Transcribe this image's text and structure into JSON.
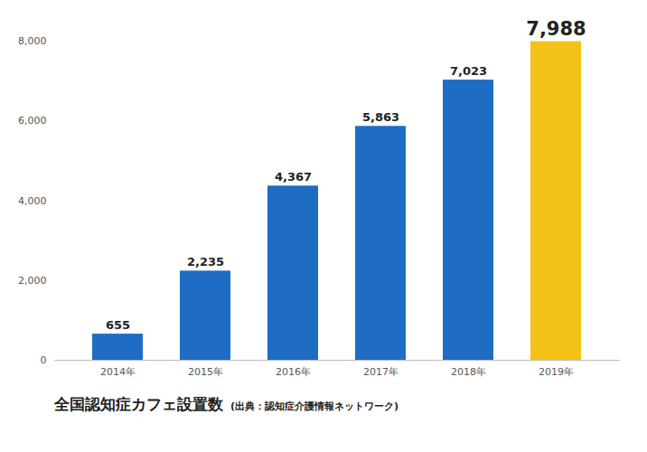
{
  "chart_data": {
    "type": "bar",
    "title": "全国認知症カフェ設置数",
    "subtitle": "(出典：認知症介護情報ネットワーク)",
    "categories": [
      "2014年",
      "2015年",
      "2016年",
      "2017年",
      "2018年",
      "2019年"
    ],
    "values": [
      655,
      2235,
      4367,
      5863,
      7023,
      7988
    ],
    "value_labels": [
      "655",
      "2,235",
      "4,367",
      "5,863",
      "7,023",
      "7,988"
    ],
    "colors": [
      "#1f6cc4",
      "#1f6cc4",
      "#1f6cc4",
      "#1f6cc4",
      "#1f6cc4",
      "#f2c218"
    ],
    "ylim": [
      0,
      8000
    ],
    "yticks": [
      0,
      {
        "value": 2000,
        "label": "2,000"
      },
      {
        "value": 4000,
        "label": "4,000"
      },
      {
        "value": 6000,
        "label": "6,000"
      },
      {
        "value": 8000,
        "label": "8,000"
      }
    ],
    "data_labels": true,
    "grid": false
  }
}
